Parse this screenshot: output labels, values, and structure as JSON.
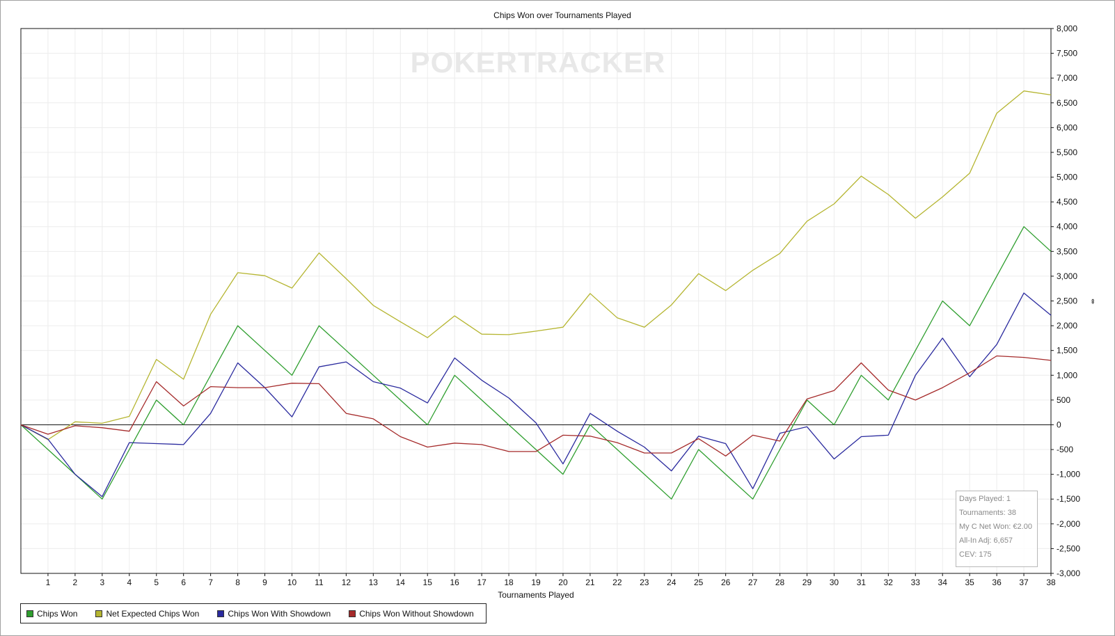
{
  "chart_data": {
    "type": "line",
    "title": "Chips Won over Tournaments Played",
    "xlabel": "Tournaments Played",
    "ylabel": "",
    "watermark": "POKERTRACKER",
    "xlim": [
      0,
      38
    ],
    "ylim": [
      -3000,
      8000
    ],
    "yticks": [
      -3000,
      -2500,
      -2000,
      -1500,
      -1000,
      -500,
      0,
      500,
      1000,
      1500,
      2000,
      2500,
      3000,
      3500,
      4000,
      4500,
      5000,
      5500,
      6000,
      6500,
      7000,
      7500,
      8000
    ],
    "ytick_labels": [
      "-3,000",
      "-2,500",
      "-2,000",
      "-1,500",
      "-1,000",
      "-500",
      "0",
      "500",
      "1,000",
      "1,500",
      "2,000",
      "2,500",
      "3,000",
      "3,500",
      "4,000",
      "4,500",
      "5,000",
      "5,500",
      "6,000",
      "6,500",
      "7,000",
      "7,500",
      "8,000"
    ],
    "xticks": [
      1,
      2,
      3,
      4,
      5,
      6,
      7,
      8,
      9,
      10,
      11,
      12,
      13,
      14,
      15,
      16,
      17,
      18,
      19,
      20,
      21,
      22,
      23,
      24,
      25,
      26,
      27,
      28,
      29,
      30,
      31,
      32,
      33,
      34,
      35,
      36,
      37,
      38
    ],
    "grid": true,
    "legend_position": "bottom-left",
    "x": [
      0,
      1,
      2,
      3,
      4,
      5,
      6,
      7,
      8,
      9,
      10,
      11,
      12,
      13,
      14,
      15,
      16,
      17,
      18,
      19,
      20,
      21,
      22,
      23,
      24,
      25,
      26,
      27,
      28,
      29,
      30,
      31,
      32,
      33,
      34,
      35,
      36,
      37,
      38
    ],
    "series": [
      {
        "name": "Chips Won",
        "color": "#2e9e2e",
        "values": [
          0,
          -500,
          -1000,
          -1500,
          -500,
          500,
          0,
          1000,
          2000,
          1500,
          1000,
          2000,
          1500,
          1000,
          500,
          0,
          1000,
          500,
          0,
          -500,
          -1000,
          0,
          -500,
          -1000,
          -1500,
          -500,
          -1000,
          -1500,
          -500,
          500,
          0,
          1000,
          500,
          1500,
          2500,
          2000,
          3000,
          4000,
          3500
        ]
      },
      {
        "name": "Net Expected Chips Won",
        "color": "#b5b530",
        "values": [
          0,
          -300,
          60,
          30,
          170,
          1320,
          920,
          2230,
          3070,
          3010,
          2760,
          3470,
          2950,
          2410,
          2080,
          1760,
          2200,
          1830,
          1820,
          1890,
          1970,
          2650,
          2160,
          1970,
          2420,
          3050,
          2710,
          3120,
          3460,
          4110,
          4460,
          5020,
          4650,
          4170,
          4600,
          5080,
          6290,
          6740,
          6660
        ]
      },
      {
        "name": "Chips Won With Showdown",
        "color": "#2a2a9e",
        "values": [
          0,
          -290,
          -1000,
          -1450,
          -360,
          -380,
          -400,
          230,
          1250,
          750,
          160,
          1170,
          1270,
          870,
          740,
          440,
          1350,
          900,
          540,
          40,
          -790,
          230,
          -130,
          -450,
          -930,
          -230,
          -380,
          -1290,
          -170,
          -40,
          -690,
          -240,
          -210,
          1000,
          1750,
          970,
          1620,
          2660,
          2210
        ]
      },
      {
        "name": "Chips Won Without Showdown",
        "color": "#a52a2a",
        "values": [
          0,
          -190,
          -20,
          -60,
          -130,
          870,
          380,
          770,
          750,
          750,
          840,
          830,
          230,
          120,
          -240,
          -450,
          -370,
          -400,
          -540,
          -540,
          -210,
          -230,
          -360,
          -570,
          -570,
          -280,
          -630,
          -210,
          -330,
          520,
          690,
          1250,
          700,
          500,
          750,
          1050,
          1390,
          1360,
          1300
        ]
      }
    ],
    "stats_box": [
      "Days Played: 1",
      "Tournaments: 38",
      "My C Net Won: €2.00",
      "All-In Adj: 6,657",
      "CEV: 175"
    ]
  }
}
